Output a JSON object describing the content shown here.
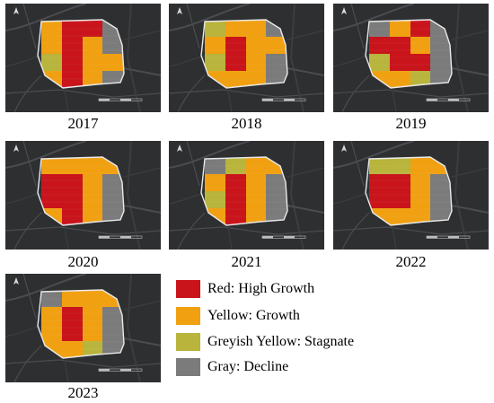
{
  "colors": {
    "background": "#2e2f31",
    "road": "#4a4c4f",
    "road_minor": "#3c3d40",
    "outline": "#e9e9e9",
    "red": "#c9141b",
    "yellow": "#f0a010",
    "greyish_yellow": "#b8b43c",
    "gray": "#7b7b7b"
  },
  "panels": [
    {
      "year": "2017",
      "grid": [
        [
          "Y",
          "R",
          "R",
          "G"
        ],
        [
          "Y",
          "R",
          "Y",
          "G"
        ],
        [
          "G",
          "R",
          "Y",
          "Y"
        ],
        [
          "Y",
          "R",
          "Y",
          "G"
        ]
      ]
    },
    {
      "year": "2018",
      "grid": [
        [
          "G",
          "Y",
          "Y",
          "G"
        ],
        [
          "Y",
          "R",
          "Y",
          "Y"
        ],
        [
          "G",
          "R",
          "Y",
          "G"
        ],
        [
          "Y",
          "Y",
          "Y",
          "G"
        ]
      ]
    },
    {
      "year": "2019",
      "grid": [
        [
          "G",
          "Y",
          "R",
          "G"
        ],
        [
          "R",
          "R",
          "Y",
          "G"
        ],
        [
          "G",
          "R",
          "R",
          "G"
        ],
        [
          "Y",
          "Y",
          "G",
          "G"
        ]
      ]
    },
    {
      "year": "2020",
      "grid": [
        [
          "Y",
          "Y",
          "Y",
          "Y"
        ],
        [
          "R",
          "R",
          "Y",
          "G"
        ],
        [
          "R",
          "R",
          "Y",
          "G"
        ],
        [
          "Y",
          "R",
          "Y",
          "G"
        ]
      ]
    },
    {
      "year": "2021",
      "grid": [
        [
          "G",
          "G",
          "Y",
          "Y"
        ],
        [
          "Y",
          "R",
          "Y",
          "G"
        ],
        [
          "G",
          "R",
          "Y",
          "G"
        ],
        [
          "Y",
          "R",
          "Y",
          "G"
        ]
      ]
    },
    {
      "year": "2022",
      "grid": [
        [
          "G",
          "G",
          "Y",
          "Y"
        ],
        [
          "R",
          "R",
          "Y",
          "G"
        ],
        [
          "R",
          "R",
          "Y",
          "G"
        ],
        [
          "Y",
          "Y",
          "Y",
          "G"
        ]
      ]
    },
    {
      "year": "2023",
      "grid": [
        [
          "G",
          "Y",
          "Y",
          "Y"
        ],
        [
          "Y",
          "R",
          "Y",
          "G"
        ],
        [
          "Y",
          "R",
          "Y",
          "G"
        ],
        [
          "Y",
          "Y",
          "G",
          "G"
        ]
      ]
    }
  ],
  "legend": [
    {
      "label": "Red: High Growth",
      "color": "#c9141b"
    },
    {
      "label": "Yellow: Growth",
      "color": "#f0a010"
    },
    {
      "label": "Greyish Yellow: Stagnate",
      "color": "#b8b43c"
    },
    {
      "label": "Gray: Decline",
      "color": "#7b7b7b"
    }
  ]
}
